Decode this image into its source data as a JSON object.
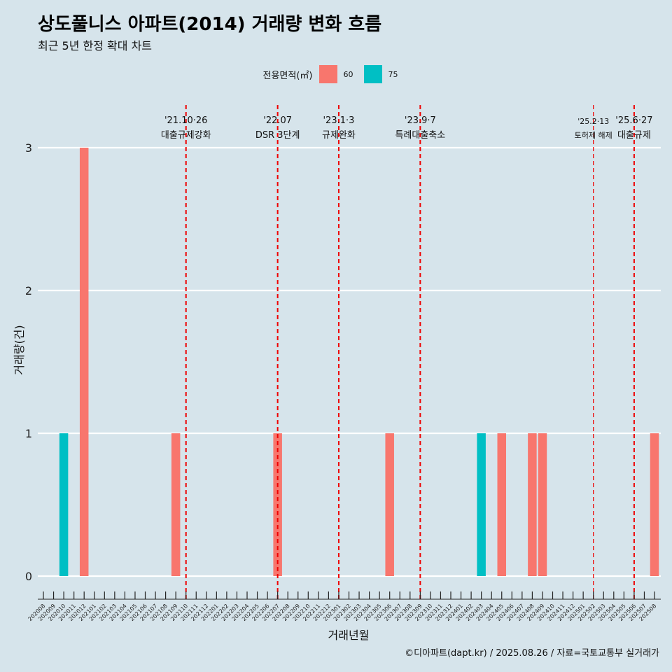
{
  "title": "상도풀니스 아파트(2014) 거래량 변화 흐름",
  "subtitle": "최근 5년 한정 확대 차트",
  "caption": "©디아파트(dapt.kr) / 2025.08.26 / 자료=국토교통부 실거래가",
  "colors": {
    "background": "#d6e4eb",
    "series_60": "#f8766d",
    "series_75": "#00bfc4",
    "event_line": "#ee0000",
    "gridline": "#ffffff"
  },
  "chart_data": {
    "type": "bar",
    "xlabel": "거래년월",
    "ylabel": "거래량(건)",
    "ylim": [
      0,
      3
    ],
    "yticks": [
      0,
      1,
      2,
      3
    ],
    "legend_title": "전용면적(㎡)",
    "legend_position": "top",
    "grid": "horizontal major lines",
    "categories": [
      "202008",
      "202009",
      "202010",
      "202011",
      "202012",
      "202101",
      "202102",
      "202103",
      "202104",
      "202105",
      "202106",
      "202107",
      "202108",
      "202109",
      "202110",
      "202111",
      "202112",
      "202201",
      "202202",
      "202203",
      "202204",
      "202205",
      "202206",
      "202207",
      "202208",
      "202209",
      "202210",
      "202211",
      "202212",
      "202301",
      "202302",
      "202303",
      "202304",
      "202305",
      "202306",
      "202307",
      "202308",
      "202309",
      "202310",
      "202311",
      "202312",
      "202401",
      "202402",
      "202403",
      "202404",
      "202405",
      "202406",
      "202407",
      "202408",
      "202409",
      "202410",
      "202411",
      "202412",
      "202501",
      "202502",
      "202503",
      "202504",
      "202505",
      "202506",
      "202507",
      "202508"
    ],
    "series": [
      {
        "name": "60",
        "color": "#f8766d",
        "points": [
          {
            "x": "202012",
            "y": 3
          },
          {
            "x": "202109",
            "y": 1
          },
          {
            "x": "202207",
            "y": 1
          },
          {
            "x": "202306",
            "y": 1
          },
          {
            "x": "202405",
            "y": 1
          },
          {
            "x": "202408",
            "y": 1
          },
          {
            "x": "202409",
            "y": 1
          },
          {
            "x": "202508",
            "y": 1
          }
        ]
      },
      {
        "name": "75",
        "color": "#00bfc4",
        "points": [
          {
            "x": "202010",
            "y": 1
          },
          {
            "x": "202403",
            "y": 1
          }
        ]
      }
    ],
    "events": [
      {
        "date": "'21.10·26",
        "label": "대출규제강화",
        "x": "202110",
        "small": false
      },
      {
        "date": "'22.07",
        "label": "DSR 3단계",
        "x": "202207",
        "small": false
      },
      {
        "date": "'23.1·3",
        "label": "규제완화",
        "x": "202301",
        "small": false
      },
      {
        "date": "'23.9·7",
        "label": "특례대출축소",
        "x": "202309",
        "small": false
      },
      {
        "date": "'25.2·13",
        "label": "토허제 해제",
        "x": "202502",
        "small": true
      },
      {
        "date": "'25.6·27",
        "label": "대출규제",
        "x": "202506",
        "small": false
      }
    ]
  }
}
